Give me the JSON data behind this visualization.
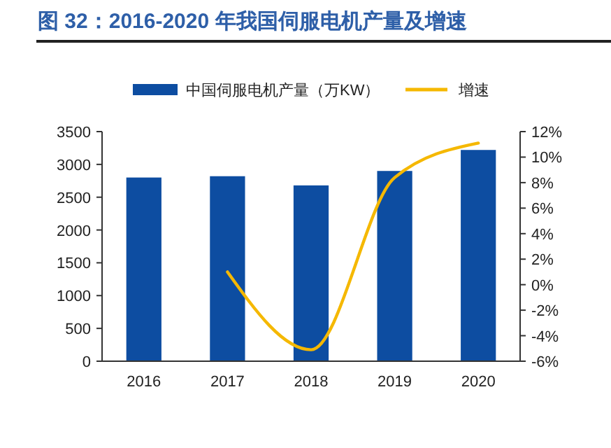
{
  "chart_data": {
    "type": "bar",
    "title": "图 32：2016-2020 年我国伺服电机产量及增速",
    "categories": [
      "2016",
      "2017",
      "2018",
      "2019",
      "2020"
    ],
    "series": [
      {
        "name": "中国伺服电机产量（万KW）",
        "color": "#0d4da1",
        "values": [
          2800,
          2820,
          2680,
          2900,
          3220
        ]
      },
      {
        "name": "增速",
        "type": "line",
        "axis": "y2",
        "color": "#f5b800",
        "values": [
          null,
          1.0,
          -5.1,
          8.4,
          11.1
        ]
      }
    ],
    "ylim": [
      0,
      3500
    ],
    "yticks": [
      0,
      500,
      1000,
      1500,
      2000,
      2500,
      3000,
      3500
    ],
    "y2lim": [
      -6,
      12
    ],
    "y2ticks": [
      {
        "value": -6,
        "label": "-6%"
      },
      {
        "value": -4,
        "label": "-4%"
      },
      {
        "value": -2,
        "label": "-2%"
      },
      {
        "value": 0,
        "label": "0%"
      },
      {
        "value": 2,
        "label": "2%"
      },
      {
        "value": 4,
        "label": "4%"
      },
      {
        "value": 6,
        "label": "6%"
      },
      {
        "value": 8,
        "label": "8%"
      },
      {
        "value": 10,
        "label": "10%"
      },
      {
        "value": 12,
        "label": "12%"
      }
    ],
    "legend": "top",
    "grid": false
  }
}
